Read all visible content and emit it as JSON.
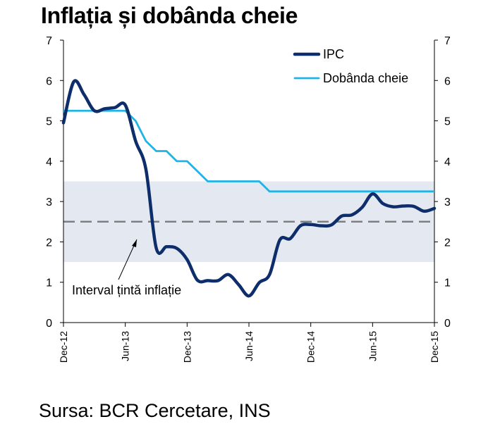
{
  "title": "Inflația și dobânda cheie",
  "source": "Sursa: BCR Cercetare, INS",
  "chart_data": {
    "type": "line",
    "title": "Inflația și dobânda cheie",
    "xlabel": "",
    "ylabel": "",
    "ylim": [
      0,
      7
    ],
    "yticks": [
      "0",
      "1",
      "2",
      "3",
      "4",
      "5",
      "6",
      "7"
    ],
    "x_start": "Dec-12",
    "x_ticks": [
      "Dec-12",
      "Jun-13",
      "Dec-13",
      "Jun-14",
      "Dec-14",
      "Jun-15",
      "Dec-15"
    ],
    "x_tick_index": [
      0,
      6,
      12,
      18,
      24,
      30,
      36
    ],
    "legend_position": "top-right",
    "series": [
      {
        "name": "IPC",
        "color": "#0d2d6b",
        "values": [
          4.95,
          5.97,
          5.65,
          5.25,
          5.3,
          5.33,
          5.39,
          4.5,
          3.8,
          1.85,
          1.88,
          1.84,
          1.56,
          1.05,
          1.04,
          1.04,
          1.19,
          0.94,
          0.66,
          0.99,
          1.19,
          2.05,
          2.08,
          2.4,
          2.43,
          2.4,
          2.42,
          2.64,
          2.67,
          2.86,
          3.19,
          2.95,
          2.87,
          2.89,
          2.88,
          2.76,
          2.83
        ]
      },
      {
        "name": "Dobânda cheie",
        "color": "#1fb3e6",
        "values": [
          5.25,
          5.25,
          5.25,
          5.25,
          5.25,
          5.25,
          5.25,
          5.0,
          4.5,
          4.25,
          4.25,
          4.0,
          4.0,
          3.75,
          3.5,
          3.5,
          3.5,
          3.5,
          3.5,
          3.5,
          3.25,
          3.25,
          3.25,
          3.25,
          3.25,
          3.25,
          3.25,
          3.25,
          3.25,
          3.25,
          3.25,
          3.25,
          3.25,
          3.25,
          3.25,
          3.25,
          3.25
        ]
      }
    ],
    "target_band": {
      "low": 1.5,
      "high": 3.5,
      "center": 2.5,
      "color": "#e4e9f1"
    },
    "annotation": "Interval țintă inflație"
  }
}
